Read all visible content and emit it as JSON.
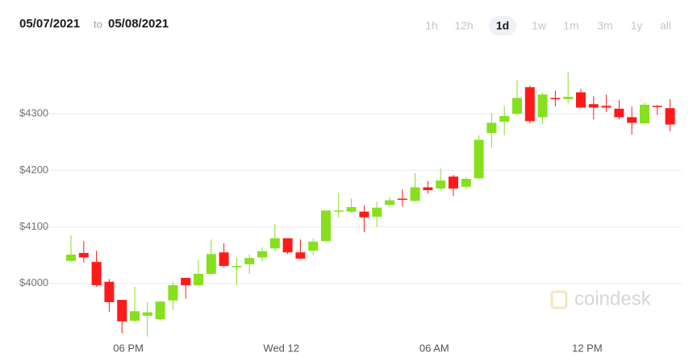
{
  "header": {
    "start_date": "05/07/2021",
    "separator": "to",
    "end_date": "05/08/2021",
    "ranges": [
      "1h",
      "12h",
      "1d",
      "1w",
      "1m",
      "3m",
      "1y",
      "all"
    ],
    "active_range": 2
  },
  "watermark": "coindesk",
  "chart_data": {
    "type": "candlestick",
    "categories": [
      null,
      null,
      null,
      null,
      null,
      "06 PM",
      null,
      null,
      null,
      null,
      null,
      null,
      null,
      null,
      null,
      null,
      null,
      "Wed 12",
      null,
      null,
      null,
      null,
      null,
      null,
      null,
      null,
      null,
      null,
      null,
      "06 AM",
      null,
      null,
      null,
      null,
      null,
      null,
      null,
      null,
      null,
      null,
      null,
      "12 PM",
      null,
      null,
      null,
      null,
      null,
      null
    ],
    "open": [
      4040,
      4054,
      4038,
      4003,
      3971,
      3934,
      3943,
      3937,
      3970,
      4010,
      3997,
      4017,
      4055,
      4029,
      4034,
      4046,
      4062,
      4080,
      4055,
      4058,
      4075,
      4128,
      4127,
      4127,
      4118,
      4139,
      4150,
      4146,
      4170,
      4168,
      4189,
      4171,
      4186,
      4266,
      4286,
      4300,
      4347,
      4294,
      4328,
      4326,
      4338,
      4317,
      4314,
      4309,
      4294,
      4283,
      4314,
      4310
    ],
    "high": [
      4085,
      4075,
      4058,
      4008,
      3971,
      3994,
      3967,
      3968,
      4003,
      4010,
      4041,
      4078,
      4071,
      4046,
      4051,
      4064,
      4105,
      4080,
      4078,
      4080,
      4129,
      4159,
      4150,
      4138,
      4145,
      4152,
      4166,
      4195,
      4181,
      4203,
      4192,
      4188,
      4262,
      4301,
      4314,
      4359,
      4350,
      4338,
      4341,
      4373,
      4344,
      4331,
      4334,
      4324,
      4313,
      4320,
      4316,
      4326
    ],
    "low": [
      4038,
      4037,
      3994,
      3950,
      3912,
      3933,
      3906,
      3934,
      3953,
      3973,
      3996,
      4016,
      4028,
      3997,
      4017,
      4038,
      4057,
      4052,
      4043,
      4050,
      4074,
      4116,
      4125,
      4091,
      4100,
      4135,
      4136,
      4145,
      4159,
      4165,
      4155,
      4166,
      4185,
      4240,
      4262,
      4298,
      4283,
      4283,
      4313,
      4318,
      4310,
      4290,
      4303,
      4290,
      4263,
      4283,
      4298,
      4269
    ],
    "close": [
      4051,
      4046,
      3997,
      3967,
      3933,
      3951,
      3949,
      3968,
      3997,
      3997,
      4017,
      4052,
      4031,
      4031,
      4045,
      4057,
      4080,
      4055,
      4044,
      4074,
      4129,
      4129,
      4135,
      4117,
      4134,
      4147,
      4148,
      4170,
      4165,
      4182,
      4168,
      4185,
      4254,
      4284,
      4296,
      4328,
      4287,
      4334,
      4326,
      4330,
      4311,
      4311,
      4311,
      4294,
      4284,
      4316,
      4312,
      4281
    ],
    "up_color": "#86e01e",
    "down_color": "#ff1a1a",
    "ylim": [
      3900,
      4400
    ],
    "yticks": [
      {
        "value": 4000,
        "label": "$4000"
      },
      {
        "value": 4100,
        "label": "$4100"
      },
      {
        "value": 4200,
        "label": "$4200"
      },
      {
        "value": 4300,
        "label": "$4300"
      }
    ],
    "grid": true
  }
}
